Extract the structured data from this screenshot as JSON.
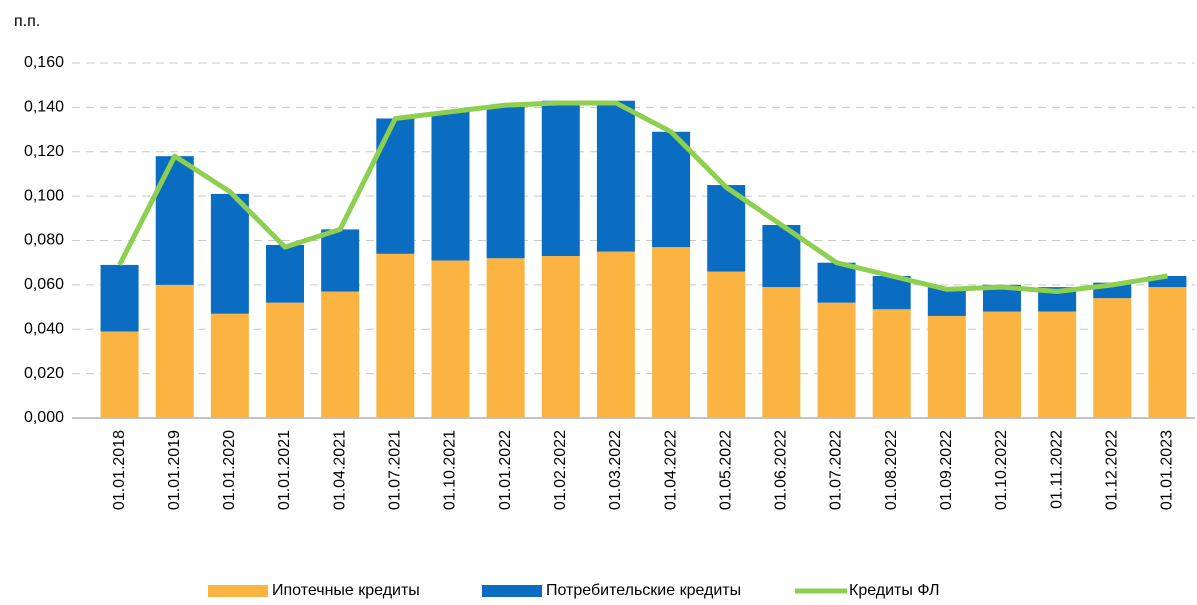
{
  "chart_data": {
    "type": "stacked_bar_line",
    "y_label": "п.п.",
    "categories": [
      "01.01.2018",
      "01.01.2019",
      "01.01.2020",
      "01.01.2021",
      "01.04.2021",
      "01.07.2021",
      "01.10.2021",
      "01.01.2022",
      "01.02.2022",
      "01.03.2022",
      "01.04.2022",
      "01.05.2022",
      "01.06.2022",
      "01.07.2022",
      "01.08.2022",
      "01.09.2022",
      "01.10.2022",
      "01.11.2022",
      "01.12.2022",
      "01.01.2023"
    ],
    "series": [
      {
        "name": "Ипотечные кредиты",
        "color": "#fbb441",
        "kind": "bar",
        "values": [
          0.039,
          0.06,
          0.047,
          0.052,
          0.057,
          0.074,
          0.071,
          0.072,
          0.073,
          0.075,
          0.077,
          0.066,
          0.059,
          0.052,
          0.049,
          0.046,
          0.048,
          0.048,
          0.054,
          0.059
        ]
      },
      {
        "name": "Потребительские кредиты",
        "color": "#0a6dc2",
        "kind": "bar",
        "values": [
          0.03,
          0.058,
          0.054,
          0.026,
          0.028,
          0.061,
          0.067,
          0.069,
          0.07,
          0.068,
          0.052,
          0.039,
          0.028,
          0.018,
          0.015,
          0.013,
          0.012,
          0.011,
          0.007,
          0.005
        ]
      },
      {
        "name": "Кредиты ФЛ",
        "color": "#8dcf4f",
        "kind": "line",
        "values": [
          0.069,
          0.118,
          0.102,
          0.077,
          0.085,
          0.135,
          0.138,
          0.141,
          0.142,
          0.142,
          0.129,
          0.104,
          0.087,
          0.07,
          0.064,
          0.058,
          0.059,
          0.057,
          0.06,
          0.064
        ]
      }
    ],
    "ylim": [
      0,
      0.16
    ],
    "yticks": [
      {
        "value": 0,
        "label": "0,000"
      },
      {
        "value": 0.02,
        "label": "0,020"
      },
      {
        "value": 0.04,
        "label": "0,040"
      },
      {
        "value": 0.06,
        "label": "0,060"
      },
      {
        "value": 0.08,
        "label": "0,080"
      },
      {
        "value": 0.1,
        "label": "0,100"
      },
      {
        "value": 0.12,
        "label": "0,120"
      },
      {
        "value": 0.14,
        "label": "0,140"
      },
      {
        "value": 0.16,
        "label": "0,160"
      }
    ],
    "grid": true,
    "legend": "bottom"
  }
}
